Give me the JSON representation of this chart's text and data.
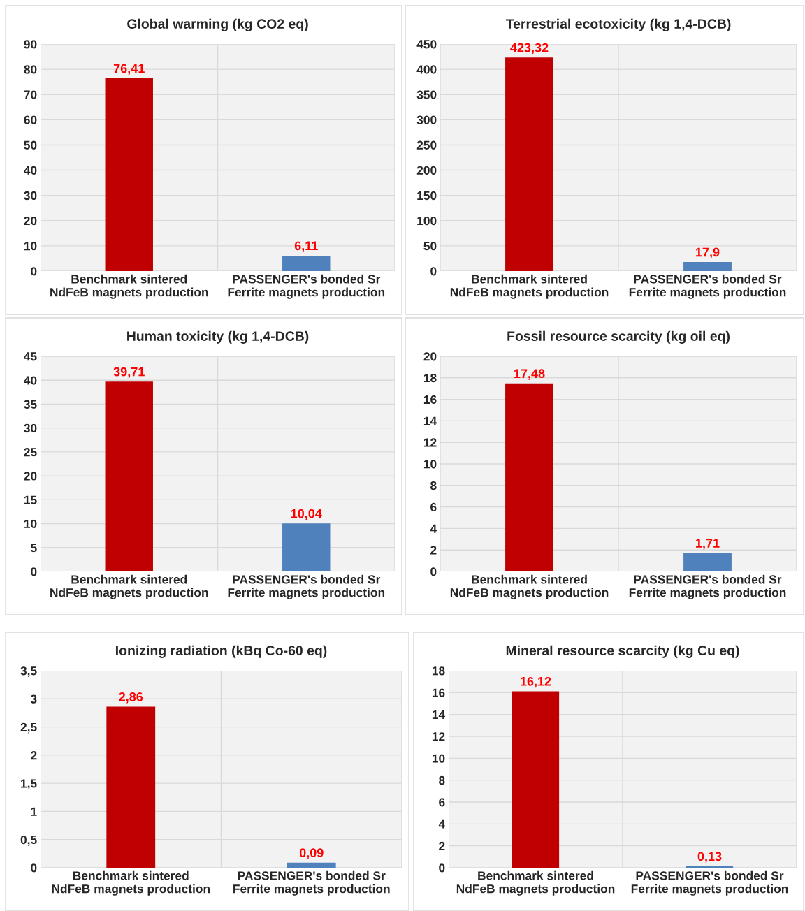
{
  "chart_data": [
    {
      "type": "bar",
      "title": "Global warming (kg CO2 eq)",
      "categories": [
        "Benchmark sintered NdFeB magnets production",
        "PASSENGER's bonded Sr Ferrite magnets production"
      ],
      "values": [
        76.41,
        6.11
      ],
      "colors": [
        "#c00000",
        "#4f81bd"
      ],
      "value_labels": [
        "76,41",
        "6,11"
      ],
      "ylim": [
        0,
        90
      ],
      "yticks": [
        0,
        10,
        20,
        30,
        40,
        50,
        60,
        70,
        80,
        90
      ],
      "grid": true,
      "legend": false
    },
    {
      "type": "bar",
      "title": "Terrestrial ecotoxicity (kg 1,4-DCB)",
      "categories": [
        "Benchmark sintered NdFeB magnets production",
        "PASSENGER's bonded Sr Ferrite magnets production"
      ],
      "values": [
        423.32,
        17.9
      ],
      "colors": [
        "#c00000",
        "#4f81bd"
      ],
      "value_labels": [
        "423,32",
        "17,9"
      ],
      "ylim": [
        0,
        450
      ],
      "yticks": [
        0,
        50,
        100,
        150,
        200,
        250,
        300,
        350,
        400,
        450
      ],
      "grid": true,
      "legend": false
    },
    {
      "type": "bar",
      "title": "Human toxicity (kg 1,4-DCB)",
      "categories": [
        "Benchmark sintered NdFeB magnets production",
        "PASSENGER's bonded Sr Ferrite magnets production"
      ],
      "values": [
        39.71,
        10.04
      ],
      "colors": [
        "#c00000",
        "#4f81bd"
      ],
      "value_labels": [
        "39,71",
        "10,04"
      ],
      "ylim": [
        0,
        45
      ],
      "yticks": [
        0,
        5,
        10,
        15,
        20,
        25,
        30,
        35,
        40,
        45
      ],
      "grid": true,
      "legend": false
    },
    {
      "type": "bar",
      "title": "Fossil resource scarcity (kg oil eq)",
      "categories": [
        "Benchmark sintered NdFeB magnets production",
        "PASSENGER's bonded Sr Ferrite magnets production"
      ],
      "values": [
        17.48,
        1.71
      ],
      "colors": [
        "#c00000",
        "#4f81bd"
      ],
      "value_labels": [
        "17,48",
        "1,71"
      ],
      "ylim": [
        0,
        20
      ],
      "yticks": [
        0,
        2,
        4,
        6,
        8,
        10,
        12,
        14,
        16,
        18,
        20
      ],
      "grid": true,
      "legend": false
    },
    {
      "type": "bar",
      "title": "Ionizing radiation (kBq Co-60 eq)",
      "categories": [
        "Benchmark sintered NdFeB magnets production",
        "PASSENGER's bonded Sr Ferrite magnets production"
      ],
      "values": [
        2.86,
        0.09
      ],
      "colors": [
        "#c00000",
        "#4f81bd"
      ],
      "value_labels": [
        "2,86",
        "0,09"
      ],
      "ylim": [
        0,
        3.5
      ],
      "yticks": [
        0,
        {
          "value": 0.5,
          "label": "0,5"
        },
        1,
        {
          "value": 1.5,
          "label": "1,5"
        },
        2,
        {
          "value": 2.5,
          "label": "2,5"
        },
        3,
        {
          "value": 3.5,
          "label": "3,5"
        }
      ],
      "grid": true,
      "legend": false
    },
    {
      "type": "bar",
      "title": "Mineral resource scarcity (kg Cu eq)",
      "categories": [
        "Benchmark sintered NdFeB magnets production",
        "PASSENGER's bonded Sr Ferrite magnets production"
      ],
      "values": [
        16.12,
        0.13
      ],
      "colors": [
        "#c00000",
        "#4f81bd"
      ],
      "value_labels": [
        "16,12",
        "0,13"
      ],
      "ylim": [
        0,
        18
      ],
      "yticks": [
        0,
        2,
        4,
        6,
        8,
        10,
        12,
        14,
        16,
        18
      ],
      "grid": true,
      "legend": false
    }
  ]
}
